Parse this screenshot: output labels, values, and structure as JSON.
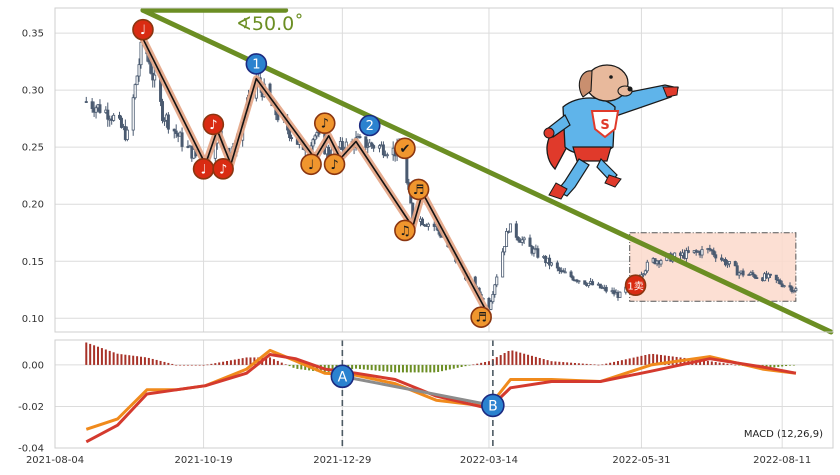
{
  "chart_data": {
    "type": "candlestick-with-macd",
    "angle_label": "∢50.0˚",
    "macd_label": "MACD (12,26,9)",
    "x_tick_labels": [
      "2021-08-04",
      "2021-10-19",
      "2021-12-29",
      "2022-03-14",
      "2022-05-31",
      "2022-08-11"
    ],
    "price_axis": {
      "ylim": [
        0.088,
        0.372
      ],
      "ticks": [
        "0.10",
        "0.15",
        "0.20",
        "0.25",
        "0.30",
        "0.35"
      ],
      "tick_values": [
        0.1,
        0.15,
        0.2,
        0.25,
        0.3,
        0.35
      ]
    },
    "macd_axis": {
      "ylim": [
        -0.04,
        0.012
      ],
      "ticks": [
        "0.00",
        "-0.02",
        "-0.04"
      ],
      "tick_values": [
        0.0,
        -0.02,
        -0.04
      ]
    },
    "colors": {
      "candle": "#4a5a70",
      "trendline": "#6b8e23",
      "zigzag_band": "#e3a383",
      "zigzag_line": "#111111",
      "macd_line": "#f08a1c",
      "signal_line": "#d43a2e",
      "hist_pos": "#a83228",
      "hist_neg": "#6b8e23",
      "box_fill": "#fbd9cb",
      "box_edge": "#555555",
      "red_marker": "#d92b12",
      "orange_marker": "#f0962e",
      "blue_marker": "#2b82cf",
      "divergence_line": "#8c8c8c"
    },
    "price_series": [
      {
        "date": "2021-08-20",
        "close": 0.29
      },
      {
        "date": "2021-09-01",
        "close": 0.28
      },
      {
        "date": "2021-09-10",
        "close": 0.26
      },
      {
        "date": "2021-09-18",
        "close": 0.345
      },
      {
        "date": "2021-09-28",
        "close": 0.28
      },
      {
        "date": "2021-10-10",
        "close": 0.25
      },
      {
        "date": "2021-10-20",
        "close": 0.235
      },
      {
        "date": "2021-10-26",
        "close": 0.265
      },
      {
        "date": "2021-11-02",
        "close": 0.24
      },
      {
        "date": "2021-11-15",
        "close": 0.31
      },
      {
        "date": "2021-11-25",
        "close": 0.28
      },
      {
        "date": "2021-12-08",
        "close": 0.25
      },
      {
        "date": "2021-12-15",
        "close": 0.26
      },
      {
        "date": "2021-12-22",
        "close": 0.245
      },
      {
        "date": "2022-01-05",
        "close": 0.255
      },
      {
        "date": "2022-01-18",
        "close": 0.25
      },
      {
        "date": "2022-01-28",
        "close": 0.245
      },
      {
        "date": "2022-02-03",
        "close": 0.19
      },
      {
        "date": "2022-02-15",
        "close": 0.18
      },
      {
        "date": "2022-03-01",
        "close": 0.14
      },
      {
        "date": "2022-03-14",
        "close": 0.11
      },
      {
        "date": "2022-03-24",
        "close": 0.18
      },
      {
        "date": "2022-04-05",
        "close": 0.16
      },
      {
        "date": "2022-04-20",
        "close": 0.14
      },
      {
        "date": "2022-05-05",
        "close": 0.13
      },
      {
        "date": "2022-05-20",
        "close": 0.12
      },
      {
        "date": "2022-06-05",
        "close": 0.15
      },
      {
        "date": "2022-06-20",
        "close": 0.155
      },
      {
        "date": "2022-07-05",
        "close": 0.16
      },
      {
        "date": "2022-07-20",
        "close": 0.14
      },
      {
        "date": "2022-08-05",
        "close": 0.135
      },
      {
        "date": "2022-08-18",
        "close": 0.125
      }
    ],
    "trendline": [
      {
        "date": "2021-09-18",
        "price": 0.37
      },
      {
        "date": "2022-09-05",
        "price": 0.088
      }
    ],
    "top_segment": [
      {
        "date": "2021-09-18",
        "price": 0.37
      },
      {
        "date": "2021-11-30",
        "price": 0.37
      }
    ],
    "zigzag": [
      {
        "date": "2021-09-18",
        "price": 0.345
      },
      {
        "date": "2021-10-20",
        "price": 0.235
      },
      {
        "date": "2021-10-26",
        "price": 0.265
      },
      {
        "date": "2021-11-02",
        "price": 0.235
      },
      {
        "date": "2021-11-15",
        "price": 0.31
      },
      {
        "date": "2021-12-15",
        "price": 0.24
      },
      {
        "date": "2021-12-22",
        "price": 0.26
      },
      {
        "date": "2021-12-28",
        "price": 0.24
      },
      {
        "date": "2022-01-05",
        "price": 0.255
      },
      {
        "date": "2022-02-03",
        "price": 0.18
      },
      {
        "date": "2022-02-08",
        "price": 0.21
      },
      {
        "date": "2022-03-14",
        "price": 0.102
      }
    ],
    "box": {
      "date_start": "2022-05-25",
      "date_end": "2022-08-18",
      "price_top": 0.175,
      "price_bottom": 0.115
    },
    "markers": [
      {
        "date": "2021-09-18",
        "price": 0.353,
        "color": "red",
        "glyph": "♩"
      },
      {
        "date": "2021-10-19",
        "price": 0.231,
        "color": "red",
        "glyph": "♩"
      },
      {
        "date": "2021-10-24",
        "price": 0.27,
        "color": "red",
        "glyph": "♪"
      },
      {
        "date": "2021-10-29",
        "price": 0.231,
        "color": "red",
        "glyph": "♪"
      },
      {
        "date": "2021-11-15",
        "price": 0.323,
        "color": "blue",
        "glyph": "1"
      },
      {
        "date": "2021-12-13",
        "price": 0.235,
        "color": "orange",
        "glyph": "♩"
      },
      {
        "date": "2021-12-20",
        "price": 0.271,
        "color": "orange",
        "glyph": "♪"
      },
      {
        "date": "2021-12-25",
        "price": 0.235,
        "color": "orange",
        "glyph": "♪"
      },
      {
        "date": "2022-01-12",
        "price": 0.269,
        "color": "blue",
        "glyph": "2"
      },
      {
        "date": "2022-01-30",
        "price": 0.249,
        "color": "orange",
        "glyph": "✔"
      },
      {
        "date": "2022-01-30",
        "price": 0.177,
        "color": "orange",
        "glyph": "♫"
      },
      {
        "date": "2022-02-06",
        "price": 0.213,
        "color": "orange",
        "glyph": "♬"
      },
      {
        "date": "2022-03-10",
        "price": 0.101,
        "color": "orange",
        "glyph": "♬"
      },
      {
        "date": "2022-05-28",
        "price": 0.129,
        "color": "red",
        "glyph": "1卖"
      }
    ],
    "macd": [
      {
        "date": "2021-08-20",
        "macd": -0.031,
        "signal": -0.037
      },
      {
        "date": "2021-09-05",
        "macd": -0.026,
        "signal": -0.029
      },
      {
        "date": "2021-09-20",
        "macd": -0.012,
        "signal": -0.014
      },
      {
        "date": "2021-10-05",
        "macd": -0.012,
        "signal": -0.012
      },
      {
        "date": "2021-10-20",
        "macd": -0.01,
        "signal": -0.01
      },
      {
        "date": "2021-11-10",
        "macd": -0.002,
        "signal": -0.004
      },
      {
        "date": "2021-11-22",
        "macd": 0.007,
        "signal": 0.005
      },
      {
        "date": "2021-12-05",
        "macd": 0.002,
        "signal": 0.003
      },
      {
        "date": "2021-12-20",
        "macd": -0.004,
        "signal": -0.002
      },
      {
        "date": "2022-01-05",
        "macd": -0.005,
        "signal": -0.004
      },
      {
        "date": "2022-01-25",
        "macd": -0.009,
        "signal": -0.007
      },
      {
        "date": "2022-02-15",
        "macd": -0.017,
        "signal": -0.015
      },
      {
        "date": "2022-03-14",
        "macd": -0.02,
        "signal": -0.021
      },
      {
        "date": "2022-03-25",
        "macd": -0.007,
        "signal": -0.011
      },
      {
        "date": "2022-04-15",
        "macd": -0.007,
        "signal": -0.008
      },
      {
        "date": "2022-05-10",
        "macd": -0.008,
        "signal": -0.008
      },
      {
        "date": "2022-06-05",
        "macd": 0.0,
        "signal": -0.003
      },
      {
        "date": "2022-07-05",
        "macd": 0.004,
        "signal": 0.003
      },
      {
        "date": "2022-08-01",
        "macd": -0.002,
        "signal": -0.001
      },
      {
        "date": "2022-08-18",
        "macd": -0.004,
        "signal": -0.004
      }
    ],
    "divergence": {
      "line": [
        {
          "date": "2021-12-29",
          "macd": -0.0055
        },
        {
          "date": "2022-03-16",
          "macd": -0.0195
        }
      ],
      "points": [
        {
          "label": "A",
          "date": "2021-12-29",
          "macd": -0.0055
        },
        {
          "label": "B",
          "date": "2022-03-16",
          "macd": -0.0195
        }
      ]
    },
    "grid": true
  }
}
